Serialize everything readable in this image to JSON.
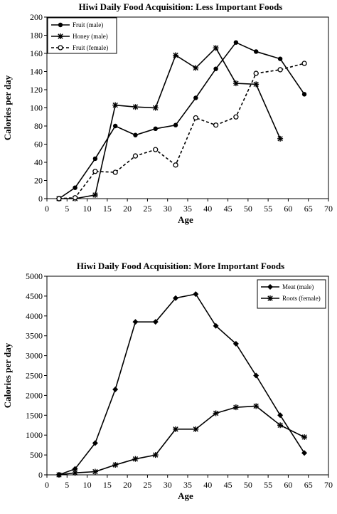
{
  "chart_data": [
    {
      "type": "line",
      "title": "Hiwi Daily Food Acquisition: Less Important Foods",
      "xlabel": "Age",
      "ylabel": "Calories per day",
      "xlim": [
        0,
        70
      ],
      "ylim": [
        0,
        200
      ],
      "xticks": [
        0,
        5,
        10,
        15,
        20,
        25,
        30,
        35,
        40,
        45,
        50,
        55,
        60,
        65,
        70
      ],
      "yticks": [
        0,
        20,
        40,
        60,
        80,
        100,
        120,
        140,
        160,
        180,
        200
      ],
      "grid": false,
      "legend_position": "top-left",
      "series": [
        {
          "name": "Fruit (male)",
          "color": "#000000",
          "line_style": "solid",
          "marker": "filled-circle",
          "x": [
            3,
            7,
            12,
            17,
            22,
            27,
            32,
            37,
            42,
            47,
            52,
            58,
            64
          ],
          "y": [
            0,
            12,
            44,
            80,
            70,
            77,
            81,
            111,
            143,
            172,
            162,
            154,
            115
          ]
        },
        {
          "name": "Honey (male)",
          "color": "#000000",
          "line_style": "solid",
          "marker": "star",
          "x": [
            3,
            7,
            12,
            17,
            22,
            27,
            32,
            37,
            42,
            47,
            52,
            58
          ],
          "y": [
            0,
            0,
            4,
            103,
            101,
            100,
            158,
            144,
            166,
            127,
            126,
            66
          ]
        },
        {
          "name": "Fruit (female)",
          "color": "#000000",
          "line_style": "dashed",
          "marker": "open-circle",
          "x": [
            3,
            7,
            12,
            17,
            22,
            27,
            32,
            37,
            42,
            47,
            52,
            58,
            64
          ],
          "y": [
            0,
            1,
            30,
            29,
            47,
            54,
            37,
            89,
            81,
            90,
            138,
            142,
            149
          ]
        }
      ]
    },
    {
      "type": "line",
      "title": "Hiwi Daily Food Acquisition: More Important Foods",
      "xlabel": "Age",
      "ylabel": "Calories per day",
      "xlim": [
        0,
        70
      ],
      "ylim": [
        0,
        5000
      ],
      "xticks": [
        0,
        5,
        10,
        15,
        20,
        25,
        30,
        35,
        40,
        45,
        50,
        55,
        60,
        65,
        70
      ],
      "yticks": [
        0,
        500,
        1000,
        1500,
        2000,
        2500,
        3000,
        3500,
        4000,
        4500,
        5000
      ],
      "grid": false,
      "legend_position": "top-right",
      "series": [
        {
          "name": "Meat (male)",
          "color": "#000000",
          "line_style": "solid",
          "marker": "filled-diamond",
          "x": [
            3,
            7,
            12,
            17,
            22,
            27,
            32,
            37,
            42,
            47,
            52,
            58,
            64
          ],
          "y": [
            0,
            150,
            800,
            2150,
            3850,
            3850,
            4450,
            4550,
            3750,
            3300,
            2500,
            1500,
            550
          ]
        },
        {
          "name": "Roots (female)",
          "color": "#000000",
          "line_style": "solid",
          "marker": "star",
          "x": [
            3,
            7,
            12,
            17,
            22,
            27,
            32,
            37,
            42,
            47,
            52,
            58,
            64
          ],
          "y": [
            0,
            50,
            80,
            250,
            400,
            500,
            1150,
            1150,
            1550,
            1700,
            1730,
            1250,
            950
          ]
        }
      ]
    }
  ]
}
